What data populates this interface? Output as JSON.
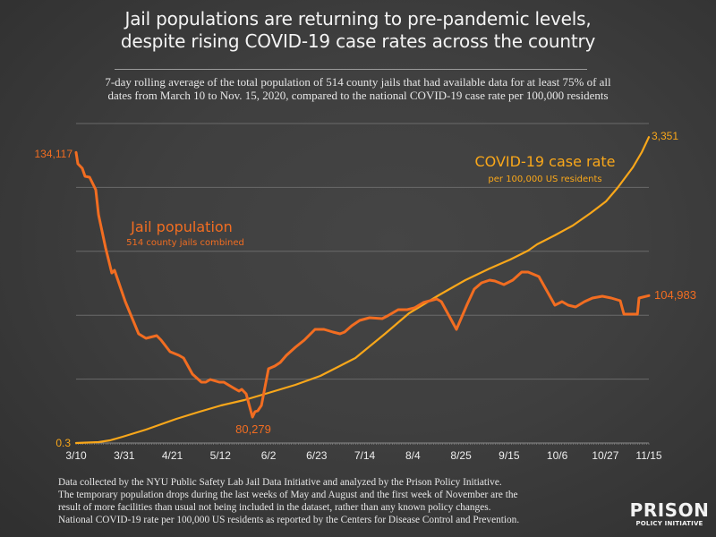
{
  "header": {
    "title_line1": "Jail populations are returning to pre-pandemic levels,",
    "title_line2": "despite rising COVID-19 case rates across the country",
    "subtitle_line1": "7-day rolling average of the total population of 514 county jails that had available data for at least 75% of all",
    "subtitle_line2": "dates from March 10 to Nov. 15, 2020, compared to the national COVID-19 case rate per 100,000 residents"
  },
  "footer": {
    "lines": [
      "Data collected by the NYU Public Safety Lab Jail Data Initiative and analyzed by the Prison Policy Initiative.",
      "The temporary population drops during the last weeks of May and August and the first week of November are the",
      "result of more facilities than usual not being included in the dataset, rather than any known policy changes.",
      "National COVID-19 rate per 100,000 US residents as reported by the Centers for Disease Control and Prevention."
    ],
    "logo_top": "PRISON",
    "logo_bottom": "POLICY INITIATIVE"
  },
  "colors": {
    "jail": "#f26d21",
    "covid": "#f9a71a",
    "grid": "#6a6a6a",
    "axis_text": "#eeeeee"
  },
  "chart_data": {
    "type": "line",
    "title": "Jail populations are returning to pre-pandemic levels, despite rising COVID-19 case rates across the country",
    "xlabel": "",
    "x_unit": "days since 3/10/2020",
    "x_range": [
      0,
      250
    ],
    "x_ticks": [
      {
        "day": 0,
        "label": "3/10"
      },
      {
        "day": 21,
        "label": "3/31"
      },
      {
        "day": 42,
        "label": "4/21"
      },
      {
        "day": 63,
        "label": "5/12"
      },
      {
        "day": 84,
        "label": "6/2"
      },
      {
        "day": 105,
        "label": "6/23"
      },
      {
        "day": 126,
        "label": "7/14"
      },
      {
        "day": 147,
        "label": "8/4"
      },
      {
        "day": 168,
        "label": "8/25"
      },
      {
        "day": 189,
        "label": "9/15"
      },
      {
        "day": 210,
        "label": "10/6"
      },
      {
        "day": 231,
        "label": "10/27"
      },
      {
        "day": 250,
        "label": "11/15"
      }
    ],
    "grid": true,
    "grid_lines": 6,
    "series": [
      {
        "name": "Jail population",
        "label": "Jail population",
        "sublabel": "514 county jails combined",
        "axis_range": [
          75000,
          140000
        ],
        "start_label": "134,117",
        "min_label": "80,279",
        "end_label": "104,983",
        "points": [
          [
            0,
            134117
          ],
          [
            0.8,
            131806
          ],
          [
            2.7,
            130896
          ],
          [
            3.9,
            129257
          ],
          [
            5.9,
            129075
          ],
          [
            8.6,
            126526
          ],
          [
            9.8,
            121428
          ],
          [
            12.9,
            114691
          ],
          [
            15.6,
            109593
          ],
          [
            16.8,
            110140
          ],
          [
            21.5,
            103767
          ],
          [
            27.3,
            97213
          ],
          [
            30.5,
            96302
          ],
          [
            35.2,
            96848
          ],
          [
            37.1,
            95938
          ],
          [
            41,
            93571
          ],
          [
            44.9,
            92843
          ],
          [
            46.9,
            92297
          ],
          [
            50.8,
            89019
          ],
          [
            54.7,
            87381
          ],
          [
            56.6,
            87381
          ],
          [
            58.6,
            87927
          ],
          [
            62.5,
            87381
          ],
          [
            64.5,
            87381
          ],
          [
            68.4,
            86288
          ],
          [
            71.1,
            85560
          ],
          [
            72.3,
            85924
          ],
          [
            74.2,
            85014
          ],
          [
            77,
            80279
          ],
          [
            78.1,
            81372
          ],
          [
            79.3,
            81554
          ],
          [
            80.9,
            82647
          ],
          [
            84,
            90112
          ],
          [
            86.7,
            90658
          ],
          [
            89.1,
            91386
          ],
          [
            91.8,
            92843
          ],
          [
            95.7,
            94482
          ],
          [
            99.6,
            95938
          ],
          [
            104.3,
            98123
          ],
          [
            108.2,
            98123
          ],
          [
            112.1,
            97577
          ],
          [
            115.2,
            97213
          ],
          [
            117.2,
            97577
          ],
          [
            120.3,
            98851
          ],
          [
            123.8,
            99944
          ],
          [
            128.1,
            100490
          ],
          [
            133.6,
            100308
          ],
          [
            135.9,
            100854
          ],
          [
            140.6,
            102128
          ],
          [
            144.5,
            102128
          ],
          [
            147.7,
            102493
          ],
          [
            151.6,
            103585
          ],
          [
            157.4,
            104313
          ],
          [
            159.4,
            103767
          ],
          [
            166,
            98123
          ],
          [
            170.7,
            103221
          ],
          [
            173.8,
            106316
          ],
          [
            177,
            107591
          ],
          [
            180.5,
            108137
          ],
          [
            182.8,
            107955
          ],
          [
            186.7,
            107227
          ],
          [
            190.6,
            108137
          ],
          [
            194.5,
            109776
          ],
          [
            197.3,
            109776
          ],
          [
            202,
            108866
          ],
          [
            209,
            103039
          ],
          [
            212.1,
            103767
          ],
          [
            214.8,
            103039
          ],
          [
            218,
            102675
          ],
          [
            221.9,
            103767
          ],
          [
            225.4,
            104495
          ],
          [
            229.7,
            104860
          ],
          [
            233.6,
            104495
          ],
          [
            237.5,
            103949
          ],
          [
            239.1,
            101218
          ],
          [
            245,
            101218
          ],
          [
            245.7,
            104495
          ],
          [
            250,
            104983
          ]
        ]
      },
      {
        "name": "COVID-19 case rate",
        "label": "COVID-19 case rate",
        "sublabel": "per 100,000 US residents",
        "axis_range": [
          0,
          3500
        ],
        "start_label": "0.3",
        "end_label": "3,351",
        "points": [
          [
            0,
            0.3
          ],
          [
            9.8,
            10
          ],
          [
            14.8,
            29
          ],
          [
            20.3,
            69
          ],
          [
            30.5,
            147
          ],
          [
            43.8,
            265
          ],
          [
            53.9,
            343
          ],
          [
            63.3,
            412
          ],
          [
            73.4,
            471
          ],
          [
            84,
            549
          ],
          [
            95.7,
            637
          ],
          [
            106.6,
            735
          ],
          [
            121.9,
            931
          ],
          [
            134.8,
            1196
          ],
          [
            145.3,
            1422
          ],
          [
            158.2,
            1618
          ],
          [
            169.9,
            1784
          ],
          [
            180.5,
            1912
          ],
          [
            189.5,
            2010
          ],
          [
            197.3,
            2108
          ],
          [
            201.2,
            2176
          ],
          [
            209,
            2275
          ],
          [
            216.8,
            2382
          ],
          [
            224.6,
            2520
          ],
          [
            231.3,
            2647
          ],
          [
            236.3,
            2794
          ],
          [
            243,
            3020
          ],
          [
            246.9,
            3186
          ],
          [
            250,
            3351
          ]
        ]
      }
    ],
    "legend": "inline-labels"
  }
}
